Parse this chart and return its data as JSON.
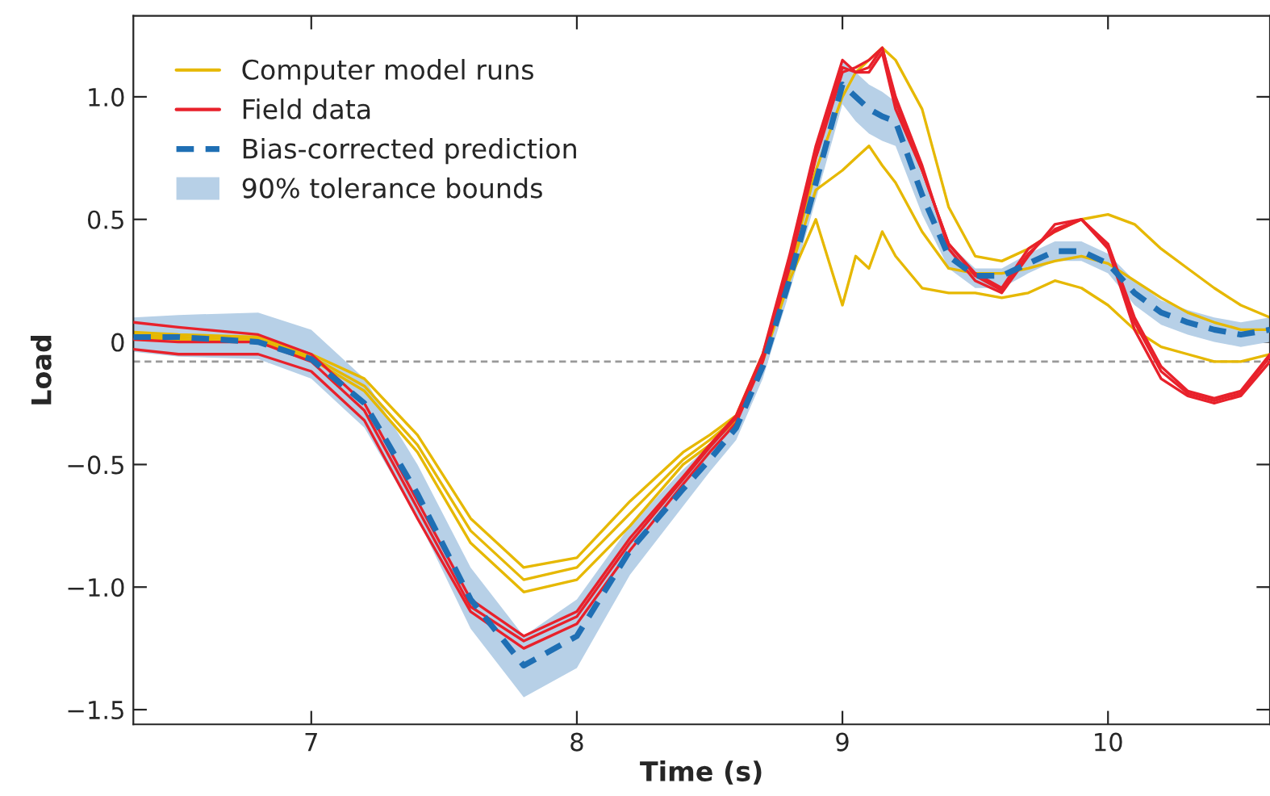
{
  "chart_data": {
    "type": "line",
    "xlabel": "Time (s)",
    "ylabel": "Load",
    "x": [
      6.33,
      6.5,
      6.8,
      7.0,
      7.2,
      7.4,
      7.6,
      7.8,
      8.0,
      8.2,
      8.4,
      8.5,
      8.6,
      8.7,
      8.8,
      8.9,
      9.0,
      9.05,
      9.1,
      9.15,
      9.2,
      9.3,
      9.4,
      9.5,
      9.6,
      9.7,
      9.8,
      9.9,
      10.0,
      10.1,
      10.2,
      10.3,
      10.4,
      10.5,
      10.61
    ],
    "series": [
      {
        "name": "Computer model runs",
        "color": "#e6b800",
        "values": [
          0.04,
          0.03,
          0.02,
          -0.05,
          -0.15,
          -0.38,
          -0.72,
          -0.92,
          -0.88,
          -0.65,
          -0.45,
          -0.38,
          -0.3,
          -0.05,
          0.3,
          0.7,
          1.0,
          1.1,
          1.15,
          1.2,
          1.15,
          0.95,
          0.55,
          0.35,
          0.33,
          0.38,
          0.45,
          0.5,
          0.52,
          0.48,
          0.38,
          0.3,
          0.22,
          0.15,
          0.1
        ]
      },
      {
        "color": "#e6b800",
        "values": [
          0.03,
          0.02,
          0.01,
          -0.06,
          -0.18,
          -0.42,
          -0.77,
          -0.97,
          -0.92,
          -0.7,
          -0.48,
          -0.4,
          -0.31,
          -0.06,
          0.28,
          0.62,
          0.7,
          0.75,
          0.8,
          0.72,
          0.65,
          0.45,
          0.3,
          0.28,
          0.28,
          0.3,
          0.33,
          0.35,
          0.32,
          0.25,
          0.18,
          0.12,
          0.08,
          0.05,
          0.05
        ]
      },
      {
        "color": "#e6b800",
        "values": [
          0.02,
          0.01,
          0.0,
          -0.07,
          -0.2,
          -0.45,
          -0.82,
          -1.02,
          -0.97,
          -0.75,
          -0.5,
          -0.42,
          -0.32,
          -0.08,
          0.25,
          0.5,
          0.15,
          0.35,
          0.3,
          0.45,
          0.35,
          0.22,
          0.2,
          0.2,
          0.18,
          0.2,
          0.25,
          0.22,
          0.15,
          0.05,
          -0.02,
          -0.05,
          -0.08,
          -0.08,
          -0.05
        ]
      },
      {
        "name": "Field data",
        "color": "#e8212b",
        "values": [
          0.08,
          0.06,
          0.03,
          -0.05,
          -0.25,
          -0.65,
          -1.05,
          -1.2,
          -1.1,
          -0.8,
          -0.55,
          -0.42,
          -0.3,
          -0.05,
          0.35,
          0.8,
          1.15,
          1.1,
          1.1,
          1.18,
          0.95,
          0.7,
          0.4,
          0.28,
          0.22,
          0.38,
          0.45,
          0.5,
          0.4,
          0.1,
          -0.1,
          -0.2,
          -0.23,
          -0.2,
          -0.05
        ]
      },
      {
        "color": "#e8212b",
        "values": [
          -0.03,
          -0.05,
          -0.05,
          -0.12,
          -0.32,
          -0.72,
          -1.1,
          -1.25,
          -1.15,
          -0.85,
          -0.58,
          -0.45,
          -0.33,
          -0.08,
          0.3,
          0.75,
          1.1,
          1.12,
          1.15,
          1.2,
          1.0,
          0.72,
          0.38,
          0.25,
          0.2,
          0.35,
          0.48,
          0.5,
          0.38,
          0.05,
          -0.15,
          -0.22,
          -0.25,
          -0.22,
          -0.08
        ]
      },
      {
        "color": "#e8212b",
        "values": [
          0.01,
          0.0,
          0.0,
          -0.08,
          -0.28,
          -0.68,
          -1.08,
          -1.22,
          -1.12,
          -0.82,
          -0.56,
          -0.43,
          -0.31,
          -0.06,
          0.32,
          0.78,
          1.12,
          1.1,
          1.12,
          1.2,
          0.98,
          0.7,
          0.4,
          0.27,
          0.21,
          0.36,
          0.46,
          0.5,
          0.39,
          0.08,
          -0.12,
          -0.21,
          -0.24,
          -0.21,
          -0.06
        ]
      },
      {
        "name": "Bias-corrected prediction",
        "color": "#1f6fb4",
        "line_style": "dashed",
        "values": [
          0.02,
          0.02,
          0.0,
          -0.07,
          -0.25,
          -0.62,
          -1.05,
          -1.32,
          -1.2,
          -0.85,
          -0.6,
          -0.48,
          -0.35,
          -0.1,
          0.25,
          0.65,
          1.05,
          1.0,
          0.95,
          0.92,
          0.9,
          0.6,
          0.35,
          0.27,
          0.27,
          0.32,
          0.37,
          0.37,
          0.32,
          0.2,
          0.12,
          0.08,
          0.05,
          0.03,
          0.05
        ],
        "lower": [
          -0.04,
          -0.06,
          -0.07,
          -0.15,
          -0.35,
          -0.72,
          -1.17,
          -1.45,
          -1.33,
          -0.95,
          -0.67,
          -0.53,
          -0.4,
          -0.15,
          0.2,
          0.58,
          0.97,
          0.9,
          0.85,
          0.82,
          0.8,
          0.52,
          0.3,
          0.22,
          0.22,
          0.28,
          0.33,
          0.33,
          0.28,
          0.15,
          0.07,
          0.03,
          0.0,
          -0.02,
          0.0
        ],
        "upper": [
          0.1,
          0.11,
          0.12,
          0.05,
          -0.15,
          -0.5,
          -0.92,
          -1.2,
          -1.05,
          -0.75,
          -0.52,
          -0.42,
          -0.3,
          -0.05,
          0.3,
          0.72,
          1.15,
          1.1,
          1.05,
          1.02,
          0.98,
          0.68,
          0.4,
          0.3,
          0.3,
          0.36,
          0.41,
          0.41,
          0.36,
          0.25,
          0.17,
          0.13,
          0.1,
          0.08,
          0.1
        ]
      }
    ],
    "annotations": [
      "90% tolerance bounds"
    ],
    "xlim": [
      6.33,
      10.61
    ],
    "ylim": [
      -1.56,
      1.33
    ],
    "xticks": [
      7,
      8,
      9,
      10
    ],
    "yticks": [
      {
        "value": -1.5,
        "label": "−1.5"
      },
      {
        "value": -1.0,
        "label": "−1.0"
      },
      {
        "value": -0.5,
        "label": "−0.5"
      },
      {
        "value": 0,
        "label": "0"
      },
      {
        "value": 0.5,
        "label": "0.5"
      },
      {
        "value": 1.0,
        "label": "1.0"
      }
    ],
    "ref_lines": [
      {
        "axis": "y",
        "value": -0.08,
        "color": "#999999",
        "line_style": "dashed"
      }
    ],
    "grid": false,
    "legend": "top left",
    "line_style": "solid"
  }
}
